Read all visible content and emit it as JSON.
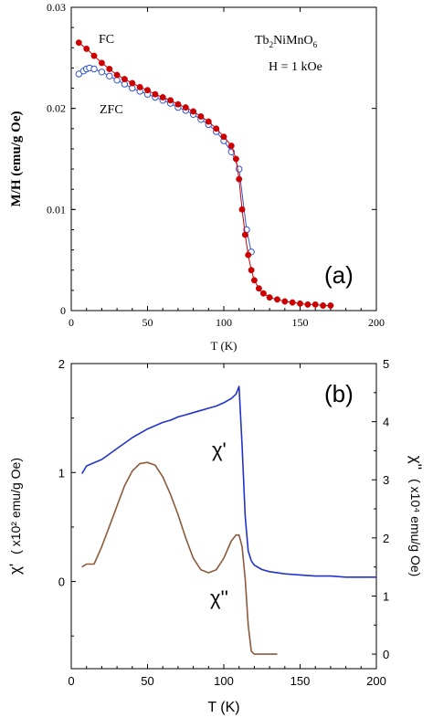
{
  "chart_data": [
    {
      "type": "scatter",
      "panel_label": "(a)",
      "xlabel": "T (K)",
      "ylabel": "M/H (emu/g Oe)",
      "xlim": [
        0,
        200
      ],
      "ylim": [
        0,
        0.03
      ],
      "x_ticks": [
        "0",
        "50",
        "100",
        "150",
        "200"
      ],
      "y_ticks": [
        "0",
        "0.01",
        "0.02",
        "0.03"
      ],
      "annotation": {
        "compound_parts": [
          "Tb",
          "2",
          "NiMnO",
          "6"
        ],
        "field": "H = 1 kOe"
      },
      "grid": false,
      "series": [
        {
          "name": "FC",
          "color": "#cc0000",
          "marker": "filled-circle",
          "x": [
            5,
            10,
            15,
            20,
            25,
            30,
            35,
            40,
            45,
            50,
            55,
            60,
            65,
            70,
            75,
            80,
            85,
            90,
            95,
            100,
            105,
            108,
            110,
            112,
            114,
            116,
            118,
            120,
            123,
            126,
            130,
            135,
            140,
            145,
            150,
            155,
            160,
            165,
            170
          ],
          "y": [
            0.0265,
            0.0259,
            0.0252,
            0.0245,
            0.0239,
            0.0233,
            0.0229,
            0.0225,
            0.0221,
            0.0218,
            0.0214,
            0.0211,
            0.0208,
            0.0204,
            0.0201,
            0.0197,
            0.0192,
            0.0187,
            0.018,
            0.0172,
            0.0163,
            0.015,
            0.013,
            0.01,
            0.0075,
            0.0055,
            0.004,
            0.003,
            0.0022,
            0.0017,
            0.0013,
            0.0011,
            0.0009,
            0.0008,
            0.0007,
            0.0006,
            0.0006,
            0.0005,
            0.0005
          ]
        },
        {
          "name": "ZFC",
          "color": "#3355cc",
          "marker": "open-circle",
          "x": [
            5,
            8,
            10,
            12,
            15,
            20,
            25,
            30,
            35,
            40,
            45,
            50,
            55,
            60,
            65,
            70,
            75,
            80,
            85,
            90,
            95,
            100,
            105,
            110,
            115,
            118
          ],
          "y": [
            0.0234,
            0.0237,
            0.0239,
            0.024,
            0.0239,
            0.0236,
            0.0232,
            0.0228,
            0.0224,
            0.022,
            0.0217,
            0.0214,
            0.0211,
            0.0208,
            0.0205,
            0.0201,
            0.0198,
            0.0194,
            0.0189,
            0.0184,
            0.0177,
            0.0168,
            0.0157,
            0.014,
            0.008,
            0.0058
          ]
        }
      ]
    },
    {
      "type": "line",
      "panel_label": "(b)",
      "xlabel": "T (K)",
      "xlim": [
        0,
        200
      ],
      "x_ticks": [
        "0",
        "50",
        "100",
        "150",
        "200"
      ],
      "y_left": {
        "label_symbol": "χ'",
        "label_unit": "( x10² emu/g Oe)",
        "lim": [
          -0.8,
          2
        ],
        "ticks": [
          "0",
          "1",
          "2"
        ]
      },
      "y_right": {
        "label_symbol": "χ''",
        "label_unit": "( x10⁴ emu/g Oe)",
        "lim": [
          -0.25,
          5
        ],
        "ticks": [
          "0",
          "1",
          "2",
          "3",
          "4",
          "5"
        ]
      },
      "grid": false,
      "series": [
        {
          "name": "χ'",
          "axis": "left",
          "color": "#2233cc",
          "x": [
            7,
            10,
            15,
            20,
            25,
            30,
            35,
            40,
            45,
            50,
            55,
            60,
            65,
            70,
            75,
            80,
            85,
            90,
            95,
            100,
            105,
            108,
            110,
            112,
            114,
            116,
            118,
            120,
            125,
            130,
            140,
            150,
            160,
            170,
            180,
            190,
            200
          ],
          "y": [
            0.99,
            1.06,
            1.09,
            1.12,
            1.17,
            1.22,
            1.27,
            1.32,
            1.36,
            1.4,
            1.43,
            1.46,
            1.48,
            1.51,
            1.53,
            1.55,
            1.57,
            1.59,
            1.61,
            1.64,
            1.68,
            1.72,
            1.79,
            1.25,
            0.6,
            0.28,
            0.19,
            0.15,
            0.11,
            0.09,
            0.07,
            0.06,
            0.05,
            0.05,
            0.04,
            0.04,
            0.04
          ]
        },
        {
          "name": "χ''",
          "axis": "right",
          "color": "#8b5a3c",
          "x": [
            7,
            10,
            15,
            20,
            25,
            30,
            35,
            40,
            45,
            50,
            55,
            60,
            65,
            70,
            75,
            80,
            85,
            90,
            95,
            100,
            105,
            108,
            110,
            112,
            114,
            116,
            118,
            120,
            125,
            130,
            135
          ],
          "y": [
            1.5,
            1.55,
            1.55,
            1.85,
            2.2,
            2.55,
            2.9,
            3.15,
            3.28,
            3.3,
            3.25,
            3.05,
            2.75,
            2.4,
            2.0,
            1.65,
            1.45,
            1.4,
            1.45,
            1.65,
            1.95,
            2.05,
            2.05,
            1.85,
            1.3,
            0.5,
            0.05,
            0.0,
            0.0,
            0.0,
            0.0
          ]
        }
      ],
      "annotations": [
        "χ'",
        "χ''"
      ]
    }
  ]
}
